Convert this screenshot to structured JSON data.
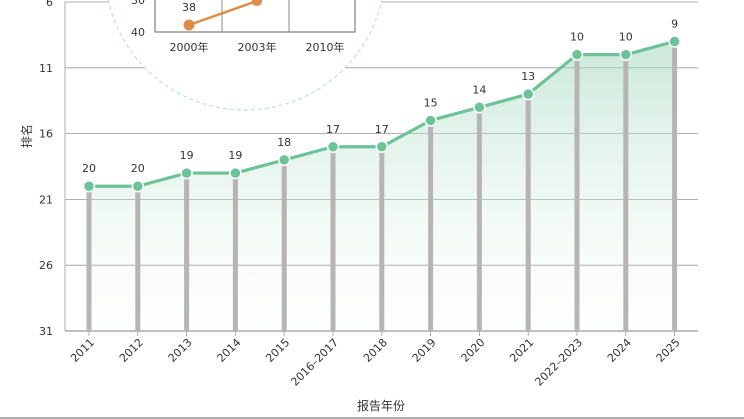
{
  "chart_data": [
    {
      "type": "area",
      "title": "",
      "xlabel": "报告年份",
      "ylabel": "排名",
      "categories": [
        "2011",
        "2012",
        "2013",
        "2014",
        "2015",
        "2016–2017",
        "2018",
        "2019",
        "2020",
        "2021",
        "2022–2023",
        "2024",
        "2025"
      ],
      "values": [
        20,
        20,
        19,
        19,
        18,
        17,
        17,
        15,
        14,
        13,
        10,
        10,
        9
      ],
      "value_labels": [
        "20",
        "20",
        "19",
        "19",
        "18",
        "17",
        "17",
        "15",
        "14",
        "13",
        "10",
        "10",
        "9"
      ],
      "yticks": [
        "6",
        "11",
        "16",
        "21",
        "26",
        "31"
      ],
      "ylim": [
        31,
        6
      ],
      "y_inverted": true,
      "grid": true,
      "colors": {
        "line": "#6cc398",
        "marker": "#6cc398",
        "bar": "#b5b5b5",
        "area": "#cfe9dc",
        "grid": "#999999"
      }
    },
    {
      "type": "line",
      "title": "",
      "categories": [
        "2000年",
        "2003年",
        "2010年"
      ],
      "values": [
        38,
        null,
        null
      ],
      "value_labels": [
        "38"
      ],
      "yticks": [
        "30",
        "40"
      ],
      "partial": true,
      "colors": {
        "line": "#e08a4a",
        "frame": "#666666",
        "circle": "#bfe3d3"
      }
    }
  ]
}
